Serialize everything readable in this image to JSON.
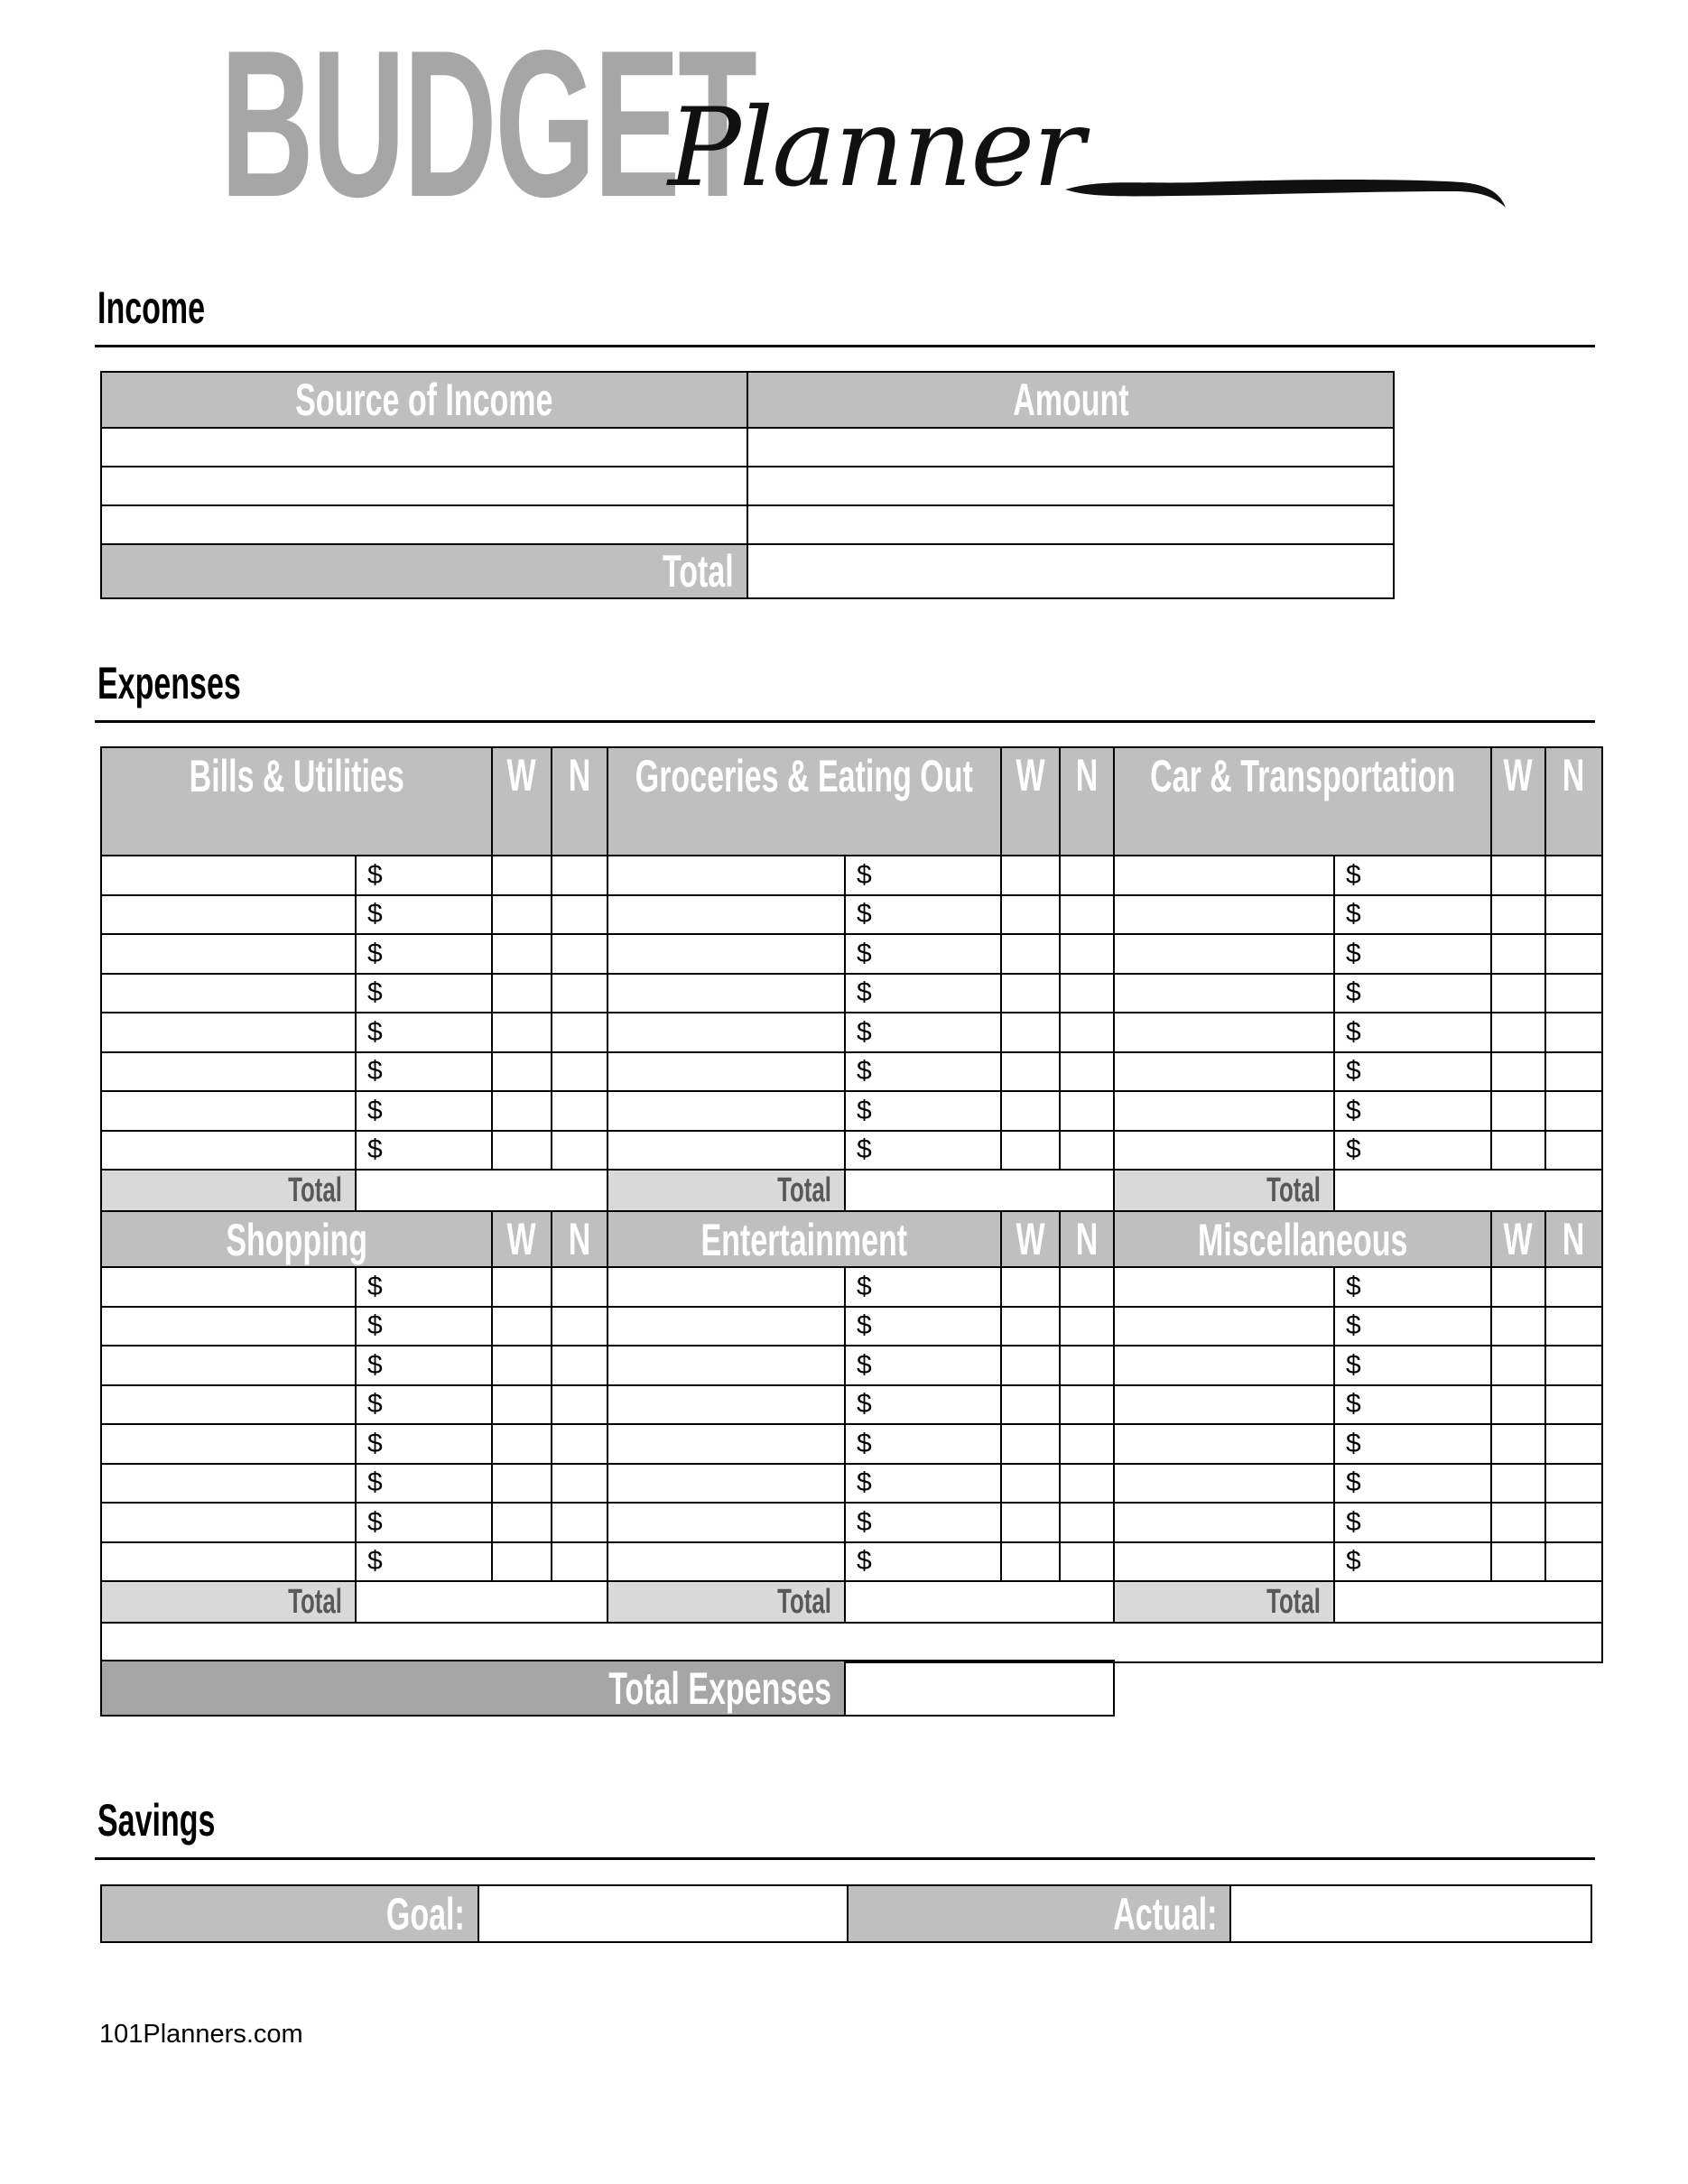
{
  "title": {
    "budget": "BUDGET",
    "planner": "Planner"
  },
  "income": {
    "heading": "Income",
    "columns": [
      "Source of Income",
      "Amount"
    ],
    "row_count": 3,
    "total_label": "Total"
  },
  "expenses": {
    "heading": "Expenses",
    "currency_symbol": "$",
    "week_label": "W",
    "need_label": "N",
    "total_label": "Total",
    "rows_per_category": 8,
    "groups": [
      [
        "Bills & Utilities",
        "Groceries & Eating Out",
        "Car & Transportation"
      ],
      [
        "Shopping",
        "Entertainment",
        "Miscellaneous"
      ]
    ],
    "total_expenses_label": "Total Expenses"
  },
  "savings": {
    "heading": "Savings",
    "goal_label": "Goal:",
    "actual_label": "Actual:"
  },
  "footer": {
    "site": "101Planners.com"
  },
  "colors": {
    "header_gray": "#bfbfbf",
    "total_gray": "#d9d9d9",
    "dark_gray": "#a6a6a6"
  }
}
